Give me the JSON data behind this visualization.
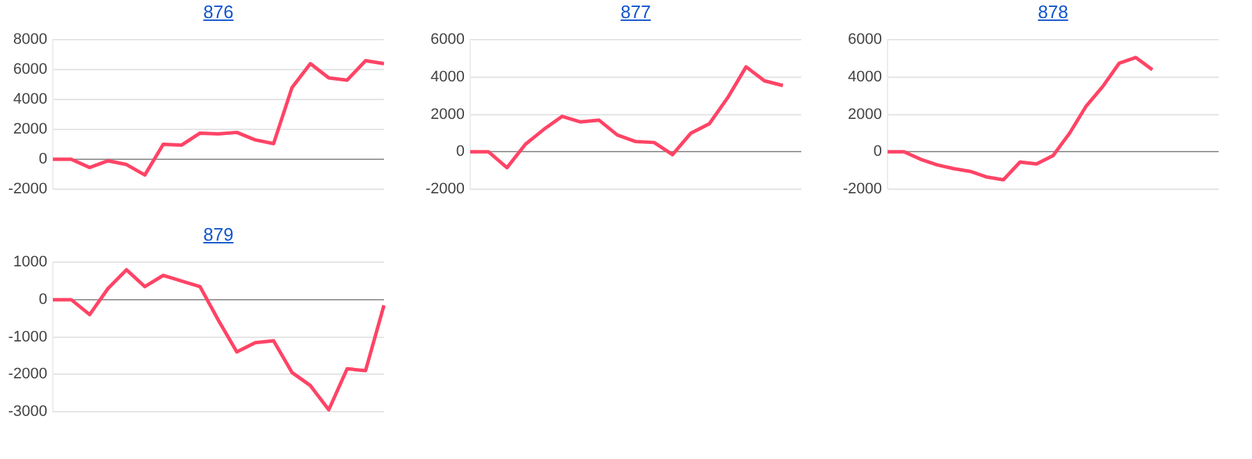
{
  "chart_data": [
    {
      "type": "line",
      "title": "876",
      "categories": [
        null,
        null,
        null,
        null,
        null,
        null,
        null,
        null,
        null,
        null,
        null,
        null,
        null,
        null,
        null,
        null,
        null,
        null,
        null
      ],
      "series": [
        {
          "color": "#ff4466",
          "values": [
            0,
            0,
            -550,
            -100,
            -350,
            -1050,
            1000,
            950,
            1750,
            1700,
            1800,
            1300,
            1050,
            4800,
            6400,
            5450,
            5300,
            6600,
            6400
          ]
        }
      ],
      "ylim": [
        -2000,
        8000
      ],
      "yticks": [
        -2000,
        0,
        2000,
        4000,
        6000,
        8000
      ],
      "grid": "y",
      "tick_labels": "y",
      "marker": "none",
      "line_style": "solid",
      "legend": false
    },
    {
      "type": "line",
      "title": "877",
      "categories": [
        null,
        null,
        null,
        null,
        null,
        null,
        null,
        null,
        null,
        null,
        null,
        null,
        null,
        null,
        null,
        null,
        null,
        null,
        null
      ],
      "series": [
        {
          "color": "#ff4466",
          "values": [
            0,
            0,
            -850,
            400,
            1200,
            1900,
            1600,
            1700,
            900,
            550,
            500,
            -150,
            1000,
            1500,
            2900,
            4550,
            3800,
            3550,
            null
          ]
        }
      ],
      "ylim": [
        -2000,
        6000
      ],
      "yticks": [
        -2000,
        0,
        2000,
        4000,
        6000
      ],
      "grid": "y",
      "tick_labels": "y",
      "marker": "none",
      "line_style": "solid",
      "legend": false
    },
    {
      "type": "line",
      "title": "878",
      "categories": [
        null,
        null,
        null,
        null,
        null,
        null,
        null,
        null,
        null,
        null,
        null,
        null,
        null,
        null,
        null,
        null,
        null,
        null,
        null,
        null,
        null
      ],
      "series": [
        {
          "color": "#ff4466",
          "values": [
            0,
            0,
            -400,
            -700,
            -900,
            -1050,
            -1350,
            -1500,
            -550,
            -650,
            -200,
            1000,
            2450,
            3500,
            4750,
            5050,
            4400,
            null,
            null,
            null,
            null
          ]
        }
      ],
      "ylim": [
        -2000,
        6000
      ],
      "yticks": [
        -2000,
        0,
        2000,
        4000,
        6000
      ],
      "grid": "y",
      "tick_labels": "y",
      "marker": "none",
      "line_style": "solid",
      "legend": false
    },
    {
      "type": "line",
      "title": "879",
      "categories": [
        null,
        null,
        null,
        null,
        null,
        null,
        null,
        null,
        null,
        null,
        null,
        null,
        null,
        null,
        null,
        null,
        null,
        null,
        null
      ],
      "series": [
        {
          "color": "#ff4466",
          "values": [
            0,
            0,
            -400,
            300,
            800,
            350,
            650,
            500,
            350,
            -550,
            -1400,
            -1150,
            -1100,
            -1950,
            -2300,
            -2950,
            -1850,
            -1900,
            -150
          ]
        }
      ],
      "ylim": [
        -3000,
        1000
      ],
      "yticks": [
        -3000,
        -2000,
        -1000,
        0,
        1000
      ],
      "grid": "y",
      "tick_labels": "y",
      "marker": "none",
      "line_style": "solid",
      "legend": false
    }
  ]
}
